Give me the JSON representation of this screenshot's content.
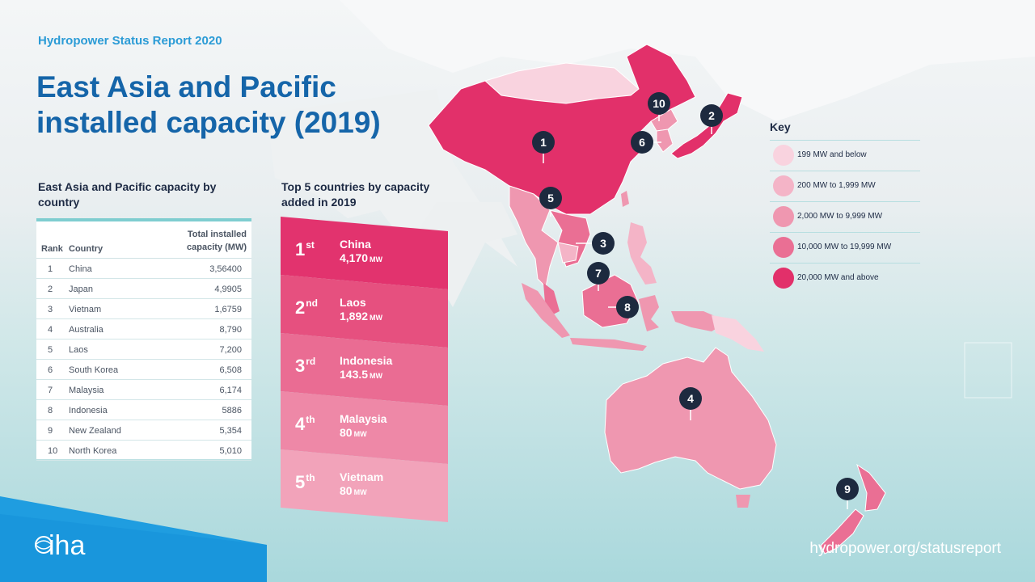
{
  "header": {
    "report": "Hydropower Status Report 2020",
    "title": "East Asia and Pacific installed capacity (2019)"
  },
  "capacity_table": {
    "title": "East Asia and Pacific capacity by country",
    "columns": [
      "Rank",
      "Country",
      "Total installed capacity (MW)"
    ],
    "rows": [
      {
        "rank": "1",
        "country": "China",
        "capacity": "3,56400"
      },
      {
        "rank": "2",
        "country": "Japan",
        "capacity": "4,9905"
      },
      {
        "rank": "3",
        "country": "Vietnam",
        "capacity": "1,6759"
      },
      {
        "rank": "4",
        "country": "Australia",
        "capacity": "8,790"
      },
      {
        "rank": "5",
        "country": "Laos",
        "capacity": "7,200"
      },
      {
        "rank": "6",
        "country": "South Korea",
        "capacity": "6,508"
      },
      {
        "rank": "7",
        "country": "Malaysia",
        "capacity": "6,174"
      },
      {
        "rank": "8",
        "country": "Indonesia",
        "capacity": "5886"
      },
      {
        "rank": "9",
        "country": "New Zealand",
        "capacity": "5,354"
      },
      {
        "rank": "10",
        "country": "North Korea",
        "capacity": "5,010"
      }
    ]
  },
  "top5": {
    "title": "Top 5 countries by capacity added in 2019",
    "items": [
      {
        "ord": "1",
        "suffix": "st",
        "country": "China",
        "value": "4,170",
        "unit": "MW",
        "color": "#e2336e"
      },
      {
        "ord": "2",
        "suffix": "nd",
        "country": "Laos",
        "value": "1,892",
        "unit": "MW",
        "color": "#e6507f"
      },
      {
        "ord": "3",
        "suffix": "rd",
        "country": "Indonesia",
        "value": "143.5",
        "unit": "MW",
        "color": "#ea6c93"
      },
      {
        "ord": "4",
        "suffix": "th",
        "country": "Malaysia",
        "value": "80",
        "unit": "MW",
        "color": "#ee88a7"
      },
      {
        "ord": "5",
        "suffix": "th",
        "country": "Vietnam",
        "value": "80",
        "unit": "MW",
        "color": "#f2a3ba"
      }
    ]
  },
  "key": {
    "title": "Key",
    "items": [
      {
        "label": "199 MW and below",
        "color": "#f9d3df"
      },
      {
        "label": "200 MW to 1,999 MW",
        "color": "#f4b4c7"
      },
      {
        "label": "2,000 MW to 9,999 MW",
        "color": "#ef97b0"
      },
      {
        "label": "10,000 MW to 19,999 MW",
        "color": "#ea6f94"
      },
      {
        "label": "20,000 MW and above",
        "color": "#e2306a"
      }
    ]
  },
  "map_markers": [
    {
      "rank": "1",
      "country": "China"
    },
    {
      "rank": "2",
      "country": "Japan"
    },
    {
      "rank": "3",
      "country": "Vietnam"
    },
    {
      "rank": "4",
      "country": "Australia"
    },
    {
      "rank": "5",
      "country": "Laos"
    },
    {
      "rank": "6",
      "country": "South Korea"
    },
    {
      "rank": "7",
      "country": "Malaysia"
    },
    {
      "rank": "8",
      "country": "Indonesia"
    },
    {
      "rank": "9",
      "country": "New Zealand"
    },
    {
      "rank": "10",
      "country": "North Korea"
    }
  ],
  "footer": {
    "logo_text": "iha",
    "url": "hydropower.org/statusreport"
  }
}
